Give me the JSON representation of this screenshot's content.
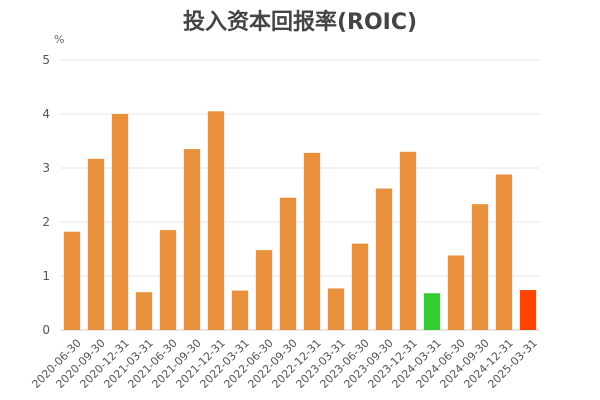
{
  "chart_data": {
    "type": "bar",
    "title": "投入资本回报率(ROIC)",
    "unit": "%",
    "xlabel": "",
    "ylabel": "",
    "ylim": [
      0,
      5
    ],
    "yticks": [
      0,
      1,
      2,
      3,
      4,
      5
    ],
    "grid": true,
    "categories": [
      "2020-06-30",
      "2020-09-30",
      "2020-12-31",
      "2021-03-31",
      "2021-06-30",
      "2021-09-30",
      "2021-12-31",
      "2022-03-31",
      "2022-06-30",
      "2022-09-30",
      "2022-12-31",
      "2023-03-31",
      "2023-06-30",
      "2023-09-30",
      "2023-12-31",
      "2024-03-31",
      "2024-06-30",
      "2024-09-30",
      "2024-12-31",
      "2025-03-31"
    ],
    "values": [
      1.82,
      3.17,
      4.0,
      0.7,
      1.85,
      3.35,
      4.05,
      0.73,
      1.48,
      2.45,
      3.28,
      0.77,
      1.6,
      2.62,
      3.3,
      0.68,
      1.38,
      2.33,
      2.88,
      0.74
    ],
    "colors": {
      "default": "#E8903C",
      "highlight_green": "#33CC33",
      "highlight_red": "#FF4500",
      "grid": "#E6E6E6",
      "axis": "#CCCCCC"
    },
    "bar_colors": [
      "default",
      "default",
      "default",
      "default",
      "default",
      "default",
      "default",
      "default",
      "default",
      "default",
      "default",
      "default",
      "default",
      "default",
      "default",
      "highlight_green",
      "default",
      "default",
      "default",
      "highlight_red"
    ]
  }
}
